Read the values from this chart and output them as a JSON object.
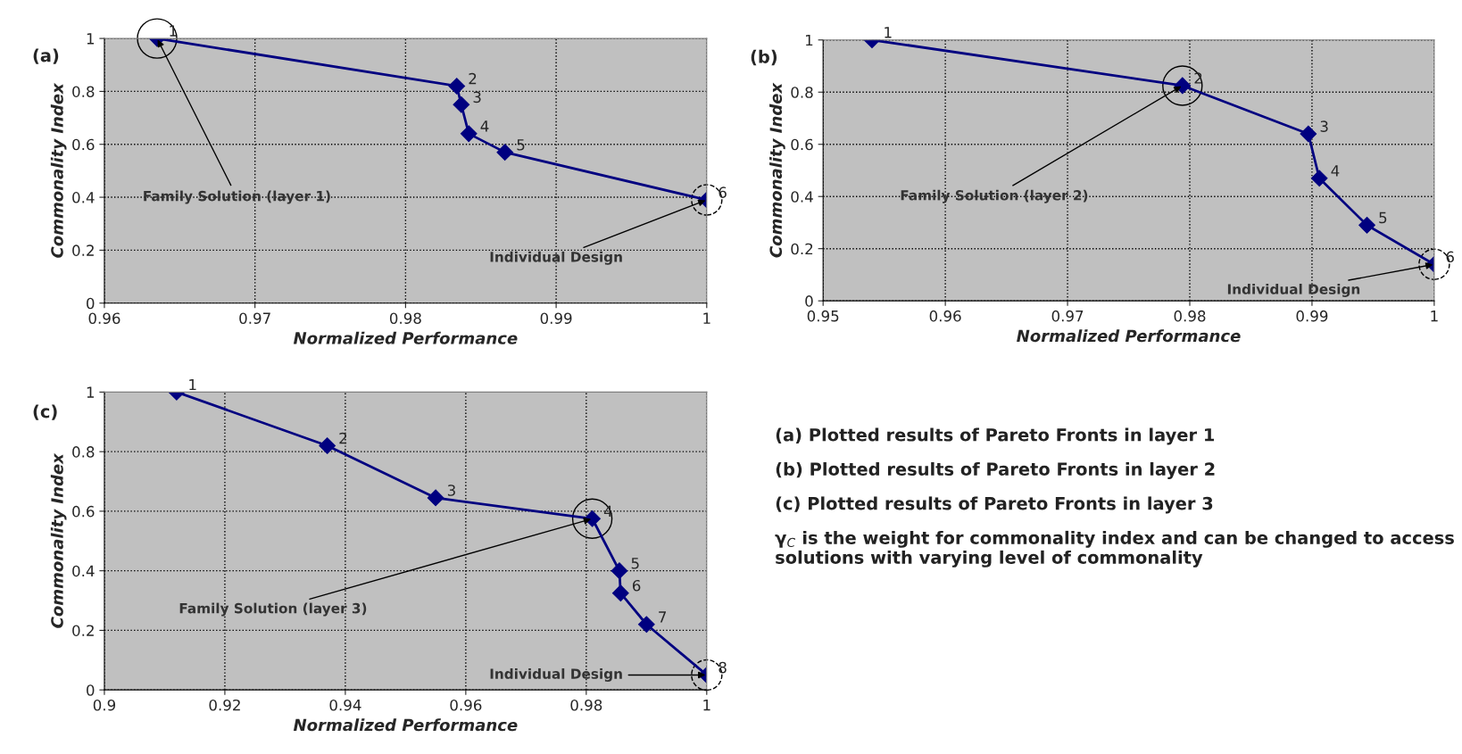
{
  "chart_data": [
    {
      "type": "line",
      "title": "(a)",
      "xlabel": "Normalized Performance",
      "ylabel": "Commonality Index",
      "marker": "diamond",
      "line_style": "solid",
      "grid": true,
      "x": [
        0.9635,
        0.9834,
        0.9837,
        0.9842,
        0.9866,
        1.0
      ],
      "series": [
        {
          "color": "#000080",
          "values": [
            1.0,
            0.82,
            0.75,
            0.64,
            0.57,
            0.39
          ]
        }
      ],
      "xlim": [
        0.96,
        1
      ],
      "xticks": [
        0.96,
        0.97,
        0.98,
        0.99,
        1
      ],
      "ylim": [
        0,
        1
      ],
      "yticks": [
        0,
        0.2,
        0.4,
        0.6,
        0.8,
        1
      ],
      "annotations": [
        {
          "text": "1",
          "x": 0.9635,
          "y": 1.0
        },
        {
          "text": "2",
          "x": 0.9834,
          "y": 0.82
        },
        {
          "text": "3",
          "x": 0.9837,
          "y": 0.75
        },
        {
          "text": "4",
          "x": 0.9842,
          "y": 0.64
        },
        {
          "text": "5",
          "x": 0.9866,
          "y": 0.57
        },
        {
          "text": "6",
          "x": 1.0,
          "y": 0.39
        },
        {
          "text": "Family Solution (layer 1)",
          "x": 0.9635,
          "y": 1.0
        },
        {
          "text": "Individual Design",
          "x": 1.0,
          "y": 0.39
        }
      ]
    },
    {
      "type": "line",
      "title": "(b)",
      "xlabel": "Normalized Performance",
      "ylabel": "Commonality Index",
      "marker": "diamond",
      "line_style": "solid",
      "grid": true,
      "x": [
        0.954,
        0.9794,
        0.9897,
        0.9906,
        0.9945,
        1.0
      ],
      "series": [
        {
          "color": "#000080",
          "values": [
            1.0,
            0.825,
            0.64,
            0.47,
            0.29,
            0.14
          ]
        }
      ],
      "xlim": [
        0.95,
        1
      ],
      "xticks": [
        0.95,
        0.96,
        0.97,
        0.98,
        0.99,
        1
      ],
      "ylim": [
        0,
        1
      ],
      "yticks": [
        0,
        0.2,
        0.4,
        0.6,
        0.8,
        1
      ],
      "annotations": [
        {
          "text": "1",
          "x": 0.954,
          "y": 1.0
        },
        {
          "text": "2",
          "x": 0.9794,
          "y": 0.825
        },
        {
          "text": "3",
          "x": 0.9897,
          "y": 0.64
        },
        {
          "text": "4",
          "x": 0.9906,
          "y": 0.47
        },
        {
          "text": "5",
          "x": 0.9945,
          "y": 0.29
        },
        {
          "text": "6",
          "x": 1.0,
          "y": 0.14
        },
        {
          "text": "Family Solution (layer 2)",
          "x": 0.9794,
          "y": 0.825
        },
        {
          "text": "Individual Design",
          "x": 1.0,
          "y": 0.14
        }
      ]
    },
    {
      "type": "line",
      "title": "(c)",
      "xlabel": "Normalized Performance",
      "ylabel": "Commonality Index",
      "marker": "diamond",
      "line_style": "solid",
      "grid": true,
      "x": [
        0.912,
        0.937,
        0.955,
        0.981,
        0.9855,
        0.9857,
        0.99,
        1.0
      ],
      "series": [
        {
          "color": "#000080",
          "values": [
            1.0,
            0.82,
            0.645,
            0.575,
            0.4,
            0.325,
            0.22,
            0.05
          ]
        }
      ],
      "xlim": [
        0.9,
        1
      ],
      "xticks": [
        0.9,
        0.92,
        0.94,
        0.96,
        0.98,
        1
      ],
      "ylim": [
        0,
        1
      ],
      "yticks": [
        0,
        0.2,
        0.4,
        0.6,
        0.8,
        1
      ],
      "annotations": [
        {
          "text": "1",
          "x": 0.912,
          "y": 1.0
        },
        {
          "text": "2",
          "x": 0.937,
          "y": 0.82
        },
        {
          "text": "3",
          "x": 0.955,
          "y": 0.645
        },
        {
          "text": "4",
          "x": 0.981,
          "y": 0.575
        },
        {
          "text": "5",
          "x": 0.9855,
          "y": 0.4
        },
        {
          "text": "6",
          "x": 0.9857,
          "y": 0.325
        },
        {
          "text": "7",
          "x": 0.99,
          "y": 0.22
        },
        {
          "text": "8",
          "x": 1.0,
          "y": 0.05
        },
        {
          "text": "Family Solution (layer 3)",
          "x": 0.981,
          "y": 0.575
        },
        {
          "text": "Individual Design",
          "x": 1.0,
          "y": 0.05
        }
      ]
    },
    {
      "type": "other",
      "annotations": [
        "(a) Plotted results of Pareto Fronts in layer 1",
        "(b) Plotted results of Pareto Fronts in layer 2",
        "(c) Plotted results of Pareto Fronts in layer 3",
        "γ$_{C}$ is the weight for commonality index and can be changed to access solutions with varying level of commonality"
      ]
    }
  ]
}
